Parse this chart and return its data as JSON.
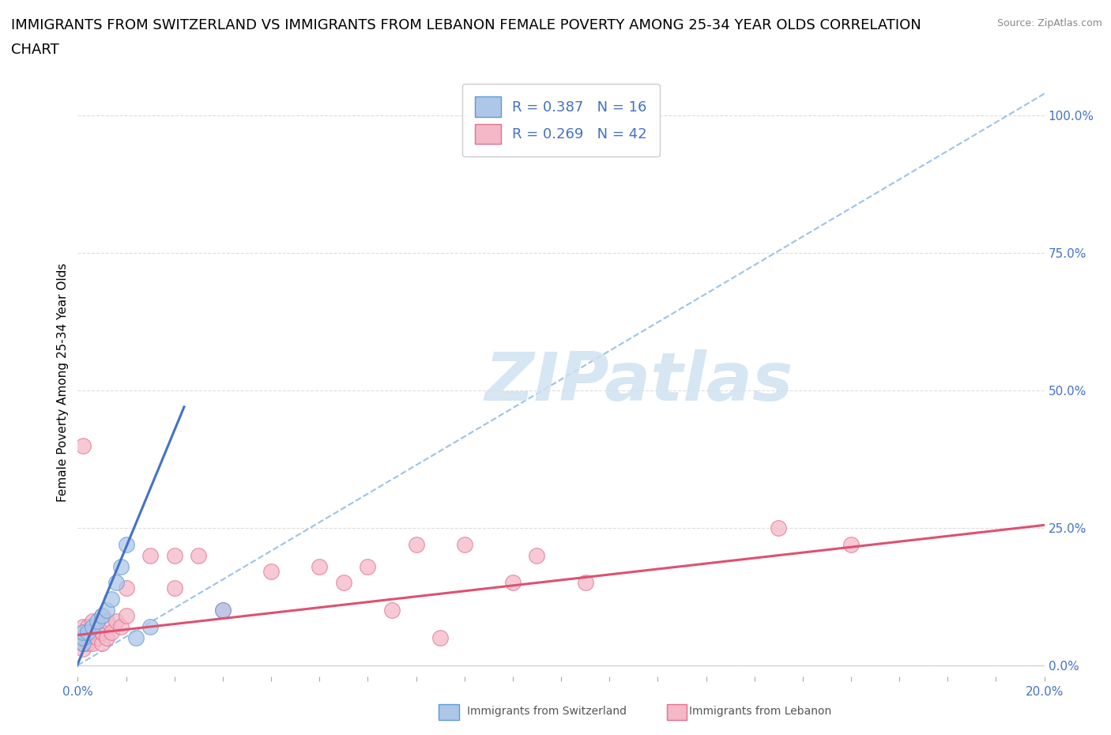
{
  "title_line1": "IMMIGRANTS FROM SWITZERLAND VS IMMIGRANTS FROM LEBANON FEMALE POVERTY AMONG 25-34 YEAR OLDS CORRELATION",
  "title_line2": "CHART",
  "source": "Source: ZipAtlas.com",
  "ylabel": "Female Poverty Among 25-34 Year Olds",
  "xlim": [
    0.0,
    0.2
  ],
  "ylim": [
    -0.02,
    1.05
  ],
  "ytick_labels_right": [
    "0.0%",
    "25.0%",
    "50.0%",
    "75.0%",
    "100.0%"
  ],
  "ytick_values": [
    0.0,
    0.25,
    0.5,
    0.75,
    1.0
  ],
  "legend_r1": "R = 0.387   N = 16",
  "legend_r2": "R = 0.269   N = 42",
  "color_swiss_fill": "#aec6e8",
  "color_swiss_edge": "#5b9bd5",
  "color_lebanon_fill": "#f4b8c8",
  "color_lebanon_edge": "#e07090",
  "color_swiss_solid_line": "#4472c4",
  "color_swiss_dash_line": "#9dc3e6",
  "color_lebanon_line": "#e05070",
  "watermark_text": "ZIPatlas",
  "watermark_color": "#cfe2f0",
  "swiss_scatter_x": [
    0.001,
    0.001,
    0.001,
    0.002,
    0.003,
    0.004,
    0.005,
    0.006,
    0.007,
    0.008,
    0.009,
    0.01,
    0.012,
    0.015,
    0.03,
    0.105
  ],
  "swiss_scatter_y": [
    0.04,
    0.05,
    0.06,
    0.06,
    0.07,
    0.08,
    0.09,
    0.1,
    0.12,
    0.15,
    0.18,
    0.22,
    0.05,
    0.07,
    0.1,
    1.0
  ],
  "lebanon_scatter_x": [
    0.001,
    0.001,
    0.001,
    0.001,
    0.001,
    0.001,
    0.002,
    0.002,
    0.002,
    0.003,
    0.003,
    0.003,
    0.004,
    0.004,
    0.005,
    0.005,
    0.005,
    0.006,
    0.006,
    0.007,
    0.008,
    0.009,
    0.01,
    0.01,
    0.015,
    0.02,
    0.02,
    0.025,
    0.03,
    0.04,
    0.05,
    0.055,
    0.06,
    0.065,
    0.07,
    0.075,
    0.08,
    0.09,
    0.095,
    0.105,
    0.145,
    0.16
  ],
  "lebanon_scatter_y": [
    0.03,
    0.04,
    0.05,
    0.06,
    0.07,
    0.4,
    0.04,
    0.05,
    0.07,
    0.04,
    0.06,
    0.08,
    0.05,
    0.07,
    0.04,
    0.06,
    0.09,
    0.05,
    0.08,
    0.06,
    0.08,
    0.07,
    0.09,
    0.14,
    0.2,
    0.14,
    0.2,
    0.2,
    0.1,
    0.17,
    0.18,
    0.15,
    0.18,
    0.1,
    0.22,
    0.05,
    0.22,
    0.15,
    0.2,
    0.15,
    0.25,
    0.22
  ],
  "swiss_solid_trend_x": [
    -0.002,
    0.022
  ],
  "swiss_solid_trend_y": [
    -0.04,
    0.47
  ],
  "swiss_dash_trend_x": [
    0.0,
    0.2
  ],
  "swiss_dash_trend_y": [
    0.0,
    1.04
  ],
  "lebanon_trend_x": [
    0.0,
    0.2
  ],
  "lebanon_trend_y": [
    0.055,
    0.255
  ],
  "grid_color": "#dddddd",
  "title_fontsize": 13,
  "label_fontsize": 11,
  "legend_fontsize": 13,
  "tick_fontsize": 11,
  "bottom_legend_labels": [
    "Immigrants from Switzerland",
    "Immigrants from Lebanon"
  ]
}
